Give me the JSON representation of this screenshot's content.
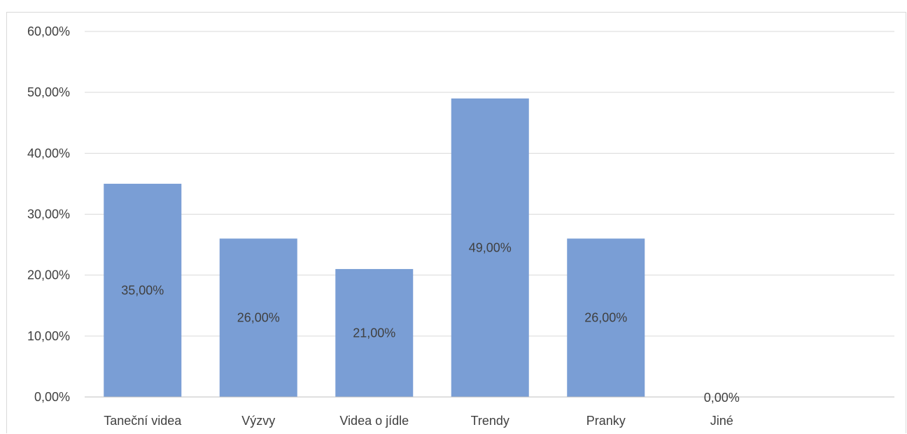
{
  "chart_data": {
    "type": "bar",
    "categories": [
      "Taneční videa",
      "Výzvy",
      "Videa o jídle",
      "Trendy",
      "Pranky",
      "Jiné"
    ],
    "values": [
      35.0,
      26.0,
      21.0,
      49.0,
      26.0,
      0.0
    ],
    "data_labels": [
      "35,00%",
      "26,00%",
      "21,00%",
      "49,00%",
      "26,00%",
      "0,00%"
    ],
    "y_ticks": [
      0,
      10,
      20,
      30,
      40,
      50,
      60
    ],
    "y_tick_labels": [
      "0,00%",
      "10,00%",
      "20,00%",
      "30,00%",
      "40,00%",
      "50,00%",
      "60,00%"
    ],
    "ylim": [
      0,
      60
    ],
    "title": "",
    "xlabel": "",
    "ylabel": "",
    "grid": true,
    "legend": "none",
    "colors": {
      "bar": "#7a9ed5",
      "gridline": "#d9d9d9",
      "axis": "#bfbfbf",
      "text": "#404040"
    }
  }
}
